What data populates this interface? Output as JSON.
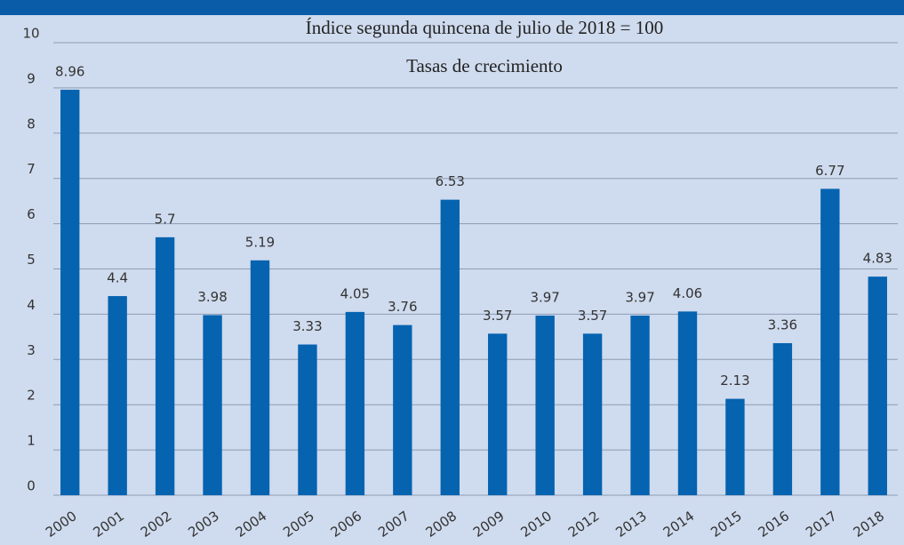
{
  "chart_data": {
    "type": "bar",
    "title": "Índice segunda quincena de julio de 2018 = 100",
    "subtitle": "Tasas de crecimiento",
    "categories": [
      "2000",
      "2001",
      "2002",
      "2003",
      "2004",
      "2005",
      "2006",
      "2007",
      "2008",
      "2009",
      "2010",
      "2012",
      "2013",
      "2014",
      "2015",
      "2016",
      "2017",
      "2018"
    ],
    "values": [
      8.96,
      4.4,
      5.7,
      3.98,
      5.19,
      3.33,
      4.05,
      3.76,
      6.53,
      3.57,
      3.97,
      3.57,
      3.97,
      4.06,
      2.13,
      3.36,
      6.77,
      4.83
    ],
    "color": "#0563b0",
    "ylim": [
      0,
      10
    ],
    "yticks": [
      0,
      1,
      2,
      3,
      4,
      5,
      6,
      7,
      8,
      9,
      10
    ],
    "grid": true
  }
}
